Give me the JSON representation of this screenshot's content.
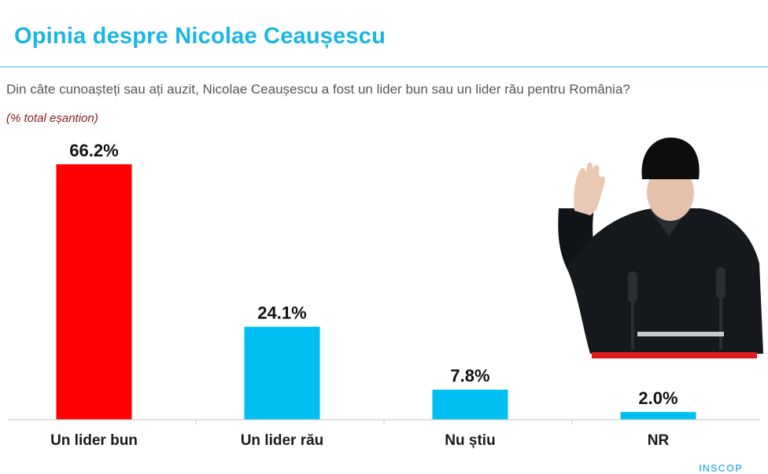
{
  "header": {
    "title": "Opinia despre Nicolae Ceaușescu",
    "question": "Din câte cunoașteți sau ați auzit, Nicolae Ceaușescu a fost un lider bun sau un lider rău pentru România?",
    "sample_note": "(% total eșantion)"
  },
  "footer": {
    "source": "INSCOP"
  },
  "colors": {
    "title": "#19b5e6",
    "highlight_bar": "#ff0000",
    "bar": "#00bff3",
    "note": "#8b1a1a"
  },
  "photo": {
    "icon": "waving-leader-portrait"
  },
  "chart_data": {
    "type": "bar",
    "categories": [
      "Un lider bun",
      "Un lider rău",
      "Nu știu",
      "NR"
    ],
    "values": [
      66.2,
      24.1,
      7.8,
      2.0
    ],
    "value_labels": [
      "66.2%",
      "24.1%",
      "7.8%",
      "2.0%"
    ],
    "bar_colors": [
      "#ff0000",
      "#00bff3",
      "#00bff3",
      "#00bff3"
    ],
    "title": "",
    "xlabel": "",
    "ylabel": "",
    "ylim": [
      0,
      66.2
    ],
    "grid": false,
    "legend": "none"
  }
}
